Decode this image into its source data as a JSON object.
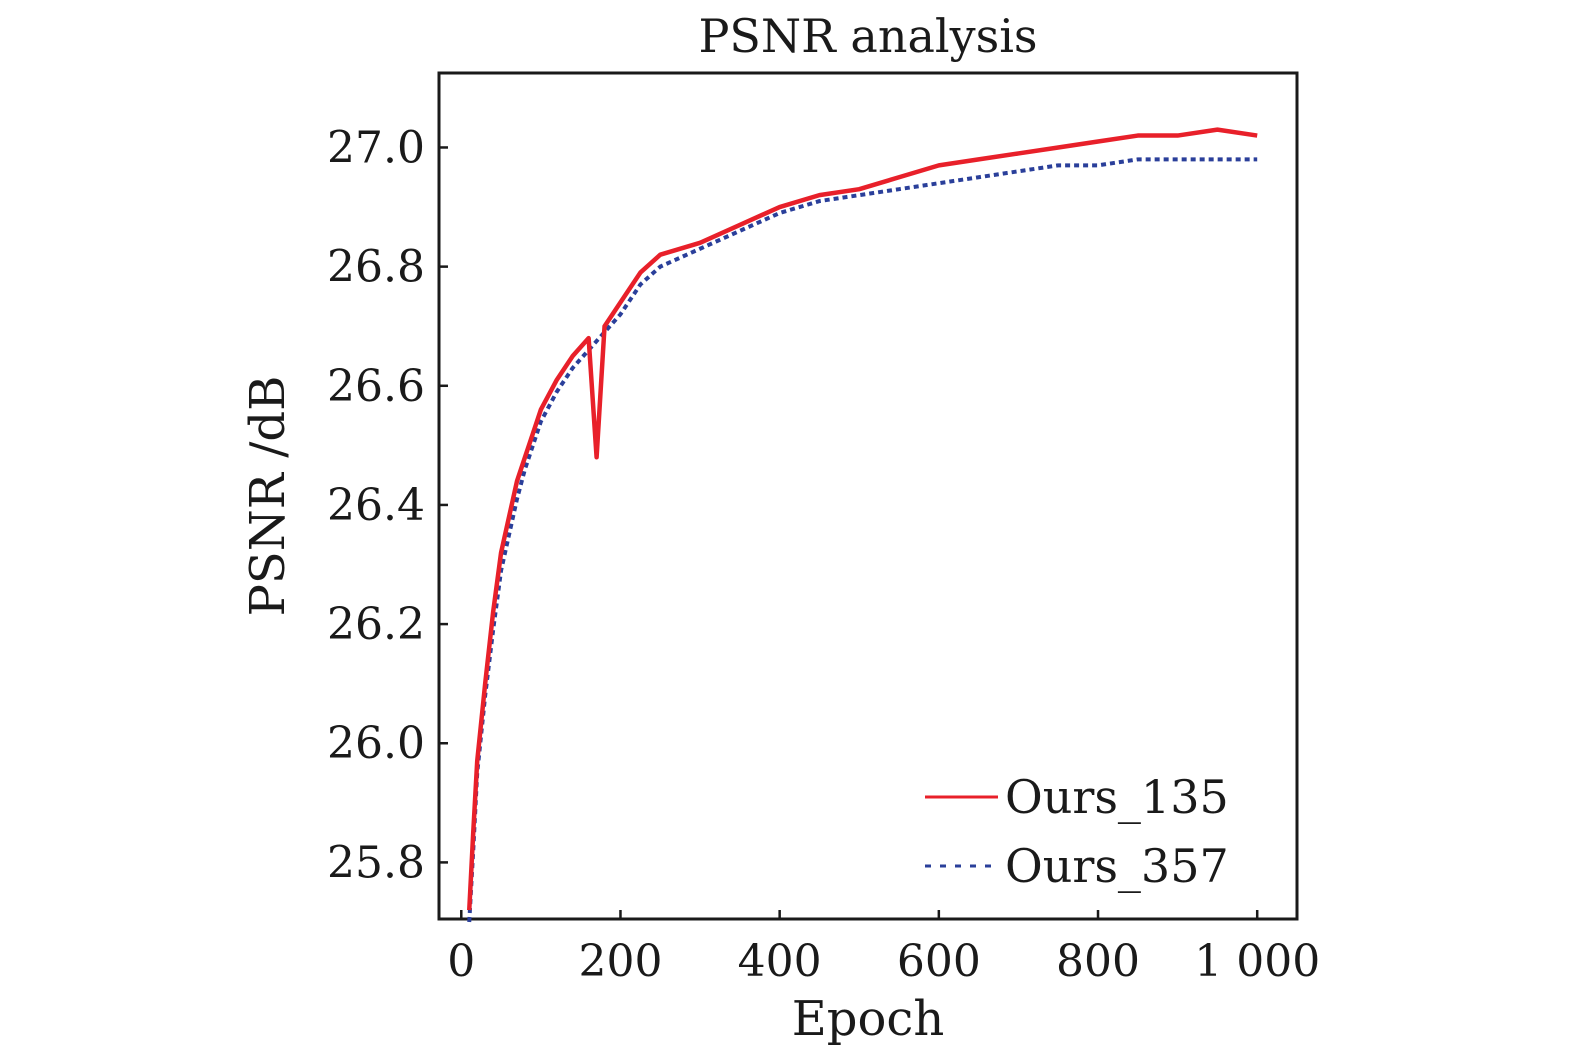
{
  "chart_data": {
    "type": "line",
    "title": "PSNR analysis",
    "xlabel": "Epoch",
    "ylabel": "PSNR /dB",
    "xlim": [
      -28,
      1050
    ],
    "ylim": [
      25.705,
      27.125
    ],
    "xticks": [
      0,
      200,
      400,
      600,
      800,
      1000
    ],
    "xtick_labels": [
      "0",
      "200",
      "400",
      "600",
      "800",
      "1 000"
    ],
    "yticks": [
      25.8,
      26.0,
      26.2,
      26.4,
      26.6,
      26.8,
      27.0
    ],
    "ytick_labels": [
      "25.8",
      "26.0",
      "26.2",
      "26.4",
      "26.6",
      "26.8",
      "27.0"
    ],
    "grid": false,
    "legend_position": "bottom-right",
    "series": [
      {
        "name": "Ours_135",
        "color": "#e8202a",
        "style": "solid",
        "x": [
          10,
          15,
          20,
          30,
          40,
          50,
          60,
          70,
          80,
          90,
          100,
          120,
          140,
          160,
          170,
          180,
          200,
          225,
          250,
          300,
          350,
          400,
          450,
          500,
          550,
          600,
          650,
          700,
          750,
          800,
          850,
          900,
          950,
          1000
        ],
        "y": [
          25.72,
          25.85,
          25.97,
          26.1,
          26.22,
          26.32,
          26.38,
          26.44,
          26.48,
          26.52,
          26.56,
          26.61,
          26.65,
          26.68,
          26.48,
          26.7,
          26.74,
          26.79,
          26.82,
          26.84,
          26.87,
          26.9,
          26.92,
          26.93,
          26.95,
          26.97,
          26.98,
          26.99,
          27.0,
          27.01,
          27.02,
          27.02,
          27.03,
          27.02
        ]
      },
      {
        "name": "Ours_357",
        "color": "#2a3f9a",
        "style": "dashed",
        "x": [
          10,
          15,
          20,
          30,
          40,
          50,
          60,
          70,
          80,
          90,
          100,
          120,
          140,
          160,
          180,
          200,
          225,
          250,
          300,
          350,
          400,
          450,
          500,
          550,
          600,
          650,
          700,
          750,
          800,
          850,
          900,
          950,
          1000
        ],
        "y": [
          25.7,
          25.82,
          25.95,
          26.08,
          26.19,
          26.29,
          26.35,
          26.41,
          26.46,
          26.5,
          26.54,
          26.59,
          26.63,
          26.66,
          26.69,
          26.72,
          26.77,
          26.8,
          26.83,
          26.86,
          26.89,
          26.91,
          26.92,
          26.93,
          26.94,
          26.95,
          26.96,
          26.97,
          26.97,
          26.98,
          26.98,
          26.98,
          26.98
        ]
      }
    ]
  }
}
